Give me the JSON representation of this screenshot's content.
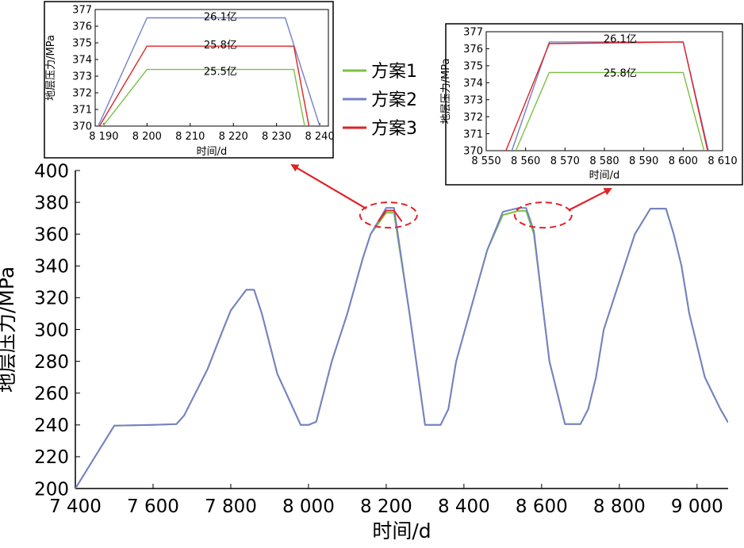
{
  "chart_data": [
    {
      "type": "line",
      "xlabel": "时间/d",
      "ylabel": "地层压力/MPa",
      "xlim": [
        7400,
        9080
      ],
      "ylim": [
        200,
        400
      ],
      "xticks": [
        7400,
        7600,
        7800,
        8000,
        8200,
        8400,
        8600,
        8800,
        9000
      ],
      "xtick_labels": [
        "7 400",
        "7 600",
        "7 800",
        "8 000",
        "8 200",
        "8 400",
        "8 600",
        "8 800",
        "9 000"
      ],
      "yticks": [
        200,
        220,
        240,
        260,
        280,
        300,
        320,
        340,
        360,
        380,
        400
      ],
      "ytick_labels": [
        "200",
        "220",
        "240",
        "260",
        "280",
        "300",
        "320",
        "340",
        "360",
        "380",
        "400"
      ],
      "series": [
        {
          "name": "方案1",
          "color": "#7ac143",
          "x": [
            7400,
            7500,
            7600,
            7660,
            7680,
            7740,
            7780,
            7800,
            7840,
            7860,
            7880,
            7920,
            7980,
            8000,
            8020,
            8060,
            8100,
            8140,
            8160,
            8200,
            8220,
            8260,
            8300,
            8340,
            8360,
            8380,
            8420,
            8460,
            8500,
            8540,
            8560,
            8580,
            8600,
            8620,
            8660,
            8700,
            8720,
            8740,
            8760,
            8800,
            8840,
            8880,
            8920,
            8940,
            8960,
            8980,
            9020,
            9060,
            9080
          ],
          "values": [
            200,
            239.5,
            240,
            240.5,
            246,
            275,
            300,
            312,
            325,
            325,
            310,
            272,
            240,
            240,
            242,
            280,
            310,
            345,
            360,
            373.4,
            373.4,
            310,
            240,
            240,
            250,
            280,
            315,
            350,
            372,
            374.6,
            374.6,
            360,
            320,
            280,
            240.5,
            240.5,
            250,
            270,
            300,
            330,
            360,
            376,
            376,
            360,
            340,
            310,
            270,
            250,
            241.5
          ]
        },
        {
          "name": "方案2",
          "color": "#7580c8",
          "x": [
            7400,
            7500,
            7600,
            7660,
            7680,
            7740,
            7780,
            7800,
            7840,
            7860,
            7880,
            7920,
            7980,
            8000,
            8020,
            8060,
            8100,
            8140,
            8160,
            8200,
            8220,
            8260,
            8300,
            8340,
            8360,
            8380,
            8420,
            8460,
            8500,
            8540,
            8560,
            8580,
            8600,
            8620,
            8660,
            8700,
            8720,
            8740,
            8760,
            8800,
            8840,
            8880,
            8920,
            8940,
            8960,
            8980,
            9020,
            9060,
            9080
          ],
          "values": [
            200,
            239.5,
            240,
            240.5,
            246,
            275,
            300,
            312,
            325,
            325,
            310,
            272,
            240,
            240,
            242,
            280,
            310,
            345,
            360,
            376.5,
            376.5,
            310,
            240,
            240,
            250,
            280,
            315,
            350,
            374,
            376.4,
            376.4,
            362,
            320,
            280,
            240.5,
            240.5,
            250,
            270,
            300,
            330,
            360,
            376,
            376,
            360,
            340,
            310,
            270,
            250,
            241.5
          ]
        },
        {
          "name": "方案3",
          "color": "#e02226",
          "x": [
            8180,
            8200,
            8220,
            8240
          ],
          "values": [
            368,
            374.8,
            374.8,
            368
          ]
        }
      ],
      "legend": [
        "方案1",
        "方案2",
        "方案3"
      ],
      "legend_position": "top-center",
      "annotations": [
        "dashed ellipse around peak near 8 200",
        "dashed ellipse around peak near 8 580",
        "arrows to zoomed insets"
      ]
    },
    {
      "type": "line",
      "xlabel": "时间/d",
      "ylabel": "地层压力/MPa",
      "xlim": [
        8188,
        8242
      ],
      "ylim": [
        370,
        377
      ],
      "xticks": [
        8190,
        8200,
        8210,
        8220,
        8230,
        8240
      ],
      "xtick_labels": [
        "8 190",
        "8 200",
        "8 210",
        "8 220",
        "8 230",
        "8 240"
      ],
      "yticks": [
        370,
        371,
        372,
        373,
        374,
        375,
        376,
        377
      ],
      "ytick_labels": [
        "370",
        "371",
        "372",
        "373",
        "374",
        "375",
        "376",
        "377"
      ],
      "series": [
        {
          "name": "方案1",
          "color": "#7ac143",
          "x": [
            8189.8,
            8200,
            8234,
            8236.5
          ],
          "values": [
            370,
            373.4,
            373.4,
            370
          ]
        },
        {
          "name": "方案2",
          "color": "#7580c8",
          "x": [
            8188.7,
            8200,
            8232,
            8240
          ],
          "values": [
            370,
            376.5,
            376.5,
            370
          ]
        },
        {
          "name": "方案3",
          "color": "#e02226",
          "x": [
            8189,
            8200,
            8234,
            8237.5
          ],
          "values": [
            370,
            374.8,
            374.8,
            370
          ]
        }
      ],
      "annotations": [
        {
          "text": "26.1亿",
          "x": 8217,
          "y": 376.6
        },
        {
          "text": "25.8亿",
          "x": 8217,
          "y": 374.9
        },
        {
          "text": "25.5亿",
          "x": 8217,
          "y": 373.3
        }
      ]
    },
    {
      "type": "line",
      "xlabel": "时间/d",
      "ylabel": "地层压力/MPa",
      "xlim": [
        8550,
        8610
      ],
      "ylim": [
        370,
        377
      ],
      "xticks": [
        8550,
        8560,
        8570,
        8580,
        8590,
        8600,
        8610
      ],
      "xtick_labels": [
        "8 550",
        "8 560",
        "8 570",
        "8 580",
        "8 590",
        "8 600",
        "8 610"
      ],
      "yticks": [
        370,
        371,
        372,
        373,
        374,
        375,
        376,
        377
      ],
      "ytick_labels": [
        "370",
        "371",
        "372",
        "373",
        "374",
        "375",
        "376",
        "377"
      ],
      "series": [
        {
          "name": "方案1",
          "color": "#7ac143",
          "x": [
            8557.5,
            8566,
            8600,
            8605.3
          ],
          "values": [
            370,
            374.6,
            374.6,
            370
          ]
        },
        {
          "name": "方案2",
          "color": "#7580c8",
          "x": [
            8556.5,
            8566,
            8600,
            8606.4
          ],
          "values": [
            370,
            376.4,
            376.4,
            370
          ]
        },
        {
          "name": "方案3",
          "color": "#e02226",
          "x": [
            8555,
            8566,
            8600,
            8606.2
          ],
          "values": [
            370,
            376.3,
            376.4,
            370
          ]
        }
      ],
      "annotations": [
        {
          "text": "26.1亿",
          "x": 8584,
          "y": 376.6
        },
        {
          "text": "25.8亿",
          "x": 8584,
          "y": 374.6
        }
      ]
    }
  ]
}
